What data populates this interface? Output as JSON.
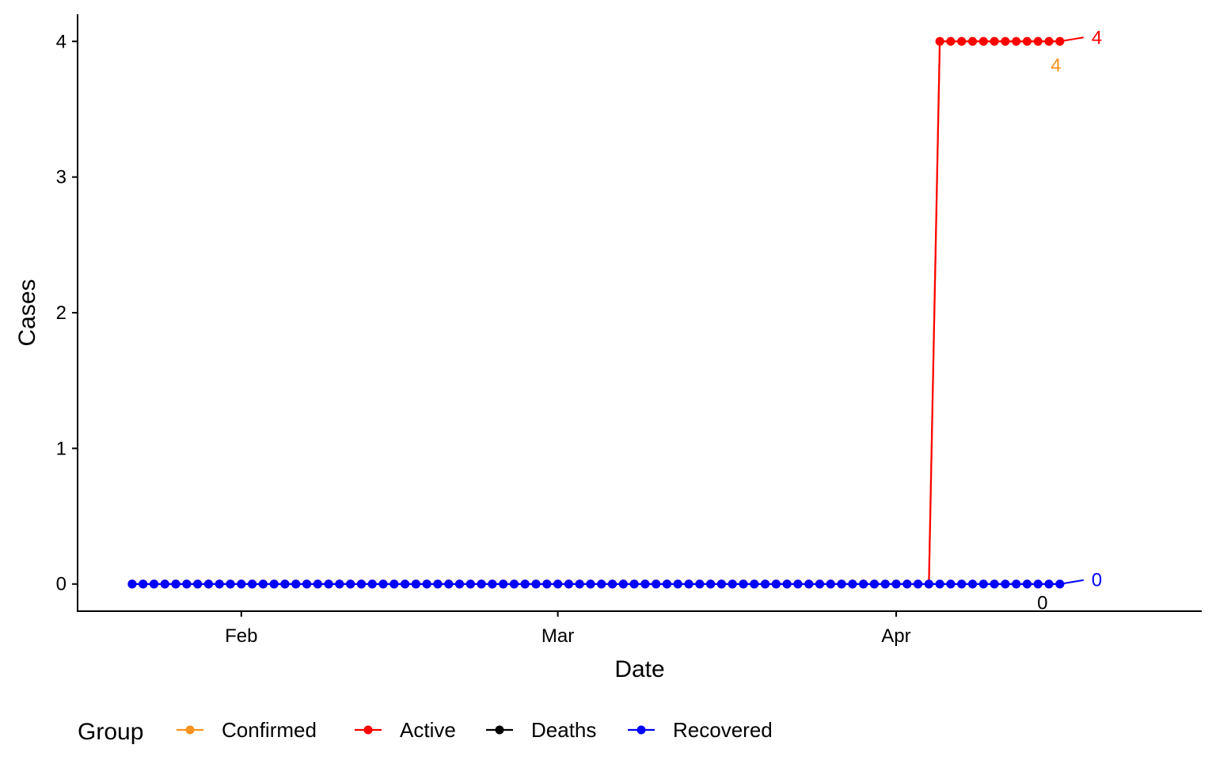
{
  "chart_data": {
    "type": "line",
    "title": "",
    "xlabel": "Date",
    "ylabel": "Cases",
    "x_start": "2020-01-22",
    "x_end": "2020-04-16",
    "xlim": [
      "2020-01-17",
      "2020-04-29"
    ],
    "ylim": [
      -0.2,
      4.2
    ],
    "x_ticks": [
      {
        "date": "2020-02-01",
        "label": "Feb"
      },
      {
        "date": "2020-03-01",
        "label": "Mar"
      },
      {
        "date": "2020-04-01",
        "label": "Apr"
      }
    ],
    "y_ticks": [
      {
        "value": 0,
        "label": "0"
      },
      {
        "value": 1,
        "label": "1"
      },
      {
        "value": 2,
        "label": "2"
      },
      {
        "value": 3,
        "label": "3"
      },
      {
        "value": 4,
        "label": "4"
      }
    ],
    "grid": false,
    "legend": {
      "title": "Group",
      "position": "bottom"
    },
    "series": [
      {
        "name": "Confirmed",
        "color": "#F7931E",
        "segments": [
          {
            "from": "2020-01-22",
            "to": "2020-04-04",
            "value": 0
          },
          {
            "from": "2020-04-05",
            "to": "2020-04-16",
            "value": 4
          }
        ],
        "end_label": "4"
      },
      {
        "name": "Active",
        "color": "#FF0000",
        "segments": [
          {
            "from": "2020-01-22",
            "to": "2020-04-04",
            "value": 0
          },
          {
            "from": "2020-04-05",
            "to": "2020-04-16",
            "value": 4
          }
        ],
        "end_label": "4"
      },
      {
        "name": "Deaths",
        "color": "#000000",
        "segments": [
          {
            "from": "2020-01-22",
            "to": "2020-04-16",
            "value": 0
          }
        ],
        "end_label": "0"
      },
      {
        "name": "Recovered",
        "color": "#0000FF",
        "segments": [
          {
            "from": "2020-01-22",
            "to": "2020-04-16",
            "value": 0
          }
        ],
        "end_label": "0"
      }
    ]
  }
}
